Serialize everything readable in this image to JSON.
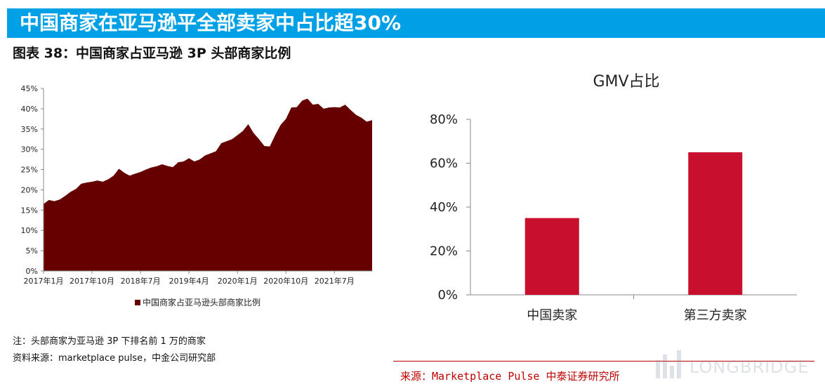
{
  "header": {
    "banner_title": "中国商家在亚马逊平全部卖家中占比超30%",
    "figure_title": "图表 38：中国商家占亚马逊 3P 头部商家比例",
    "colors": {
      "banner": "#00a0e6",
      "area": "#660000",
      "bar": "#c8102e"
    }
  },
  "left": {
    "legend_label": "中国商家占亚马逊头部商家比例",
    "note": "注：头部商家为亚马逊 3P 下排名前 1 万的商家",
    "source": "资料来源：marketplace pulse，中金公司研究部"
  },
  "right": {
    "source": "来源：Marketplace Pulse 中泰证券研究所"
  },
  "watermark": {
    "text": "LONGBRIDGE"
  },
  "chart_data": [
    {
      "type": "area",
      "title": "",
      "xlabel": "",
      "ylabel": "",
      "ylim": [
        0,
        45
      ],
      "yticks": [
        "0%",
        "5%",
        "10%",
        "15%",
        "20%",
        "25%",
        "30%",
        "35%",
        "40%",
        "45%"
      ],
      "x_tick_labels": [
        "2017年1月",
        "2017年10月",
        "2018年7月",
        "2019年4月",
        "2020年1月",
        "2020年10月",
        "2021年7月"
      ],
      "legend": "bottom",
      "series": [
        {
          "name": "中国商家占亚马逊头部商家比例",
          "values": [
            16.5,
            17.5,
            17.2,
            17.6,
            18.5,
            19.5,
            20.2,
            21.5,
            21.8,
            22.0,
            22.3,
            22.0,
            22.6,
            23.5,
            25.2,
            24.2,
            23.5,
            24.0,
            24.4,
            25.0,
            25.5,
            25.8,
            26.3,
            25.9,
            25.6,
            26.8,
            27.0,
            27.8,
            27.0,
            27.5,
            28.5,
            29.0,
            29.5,
            31.5,
            32.0,
            32.5,
            33.5,
            34.5,
            36.2,
            34.0,
            32.5,
            30.8,
            30.7,
            33.5,
            36.0,
            37.5,
            40.3,
            40.4,
            42.0,
            42.5,
            41.0,
            41.2,
            40.0,
            40.3,
            40.4,
            40.3,
            41.0,
            39.7,
            38.5,
            37.8,
            36.8,
            37.2
          ]
        }
      ]
    },
    {
      "type": "bar",
      "title": "GMV占比",
      "categories": [
        "中国卖家",
        "第三方卖家"
      ],
      "values": [
        35,
        65
      ],
      "xlabel": "",
      "ylabel": "",
      "ylim": [
        0,
        80
      ],
      "yticks": [
        "0%",
        "20%",
        "40%",
        "60%",
        "80%"
      ],
      "grid": false,
      "legend": "none"
    }
  ]
}
